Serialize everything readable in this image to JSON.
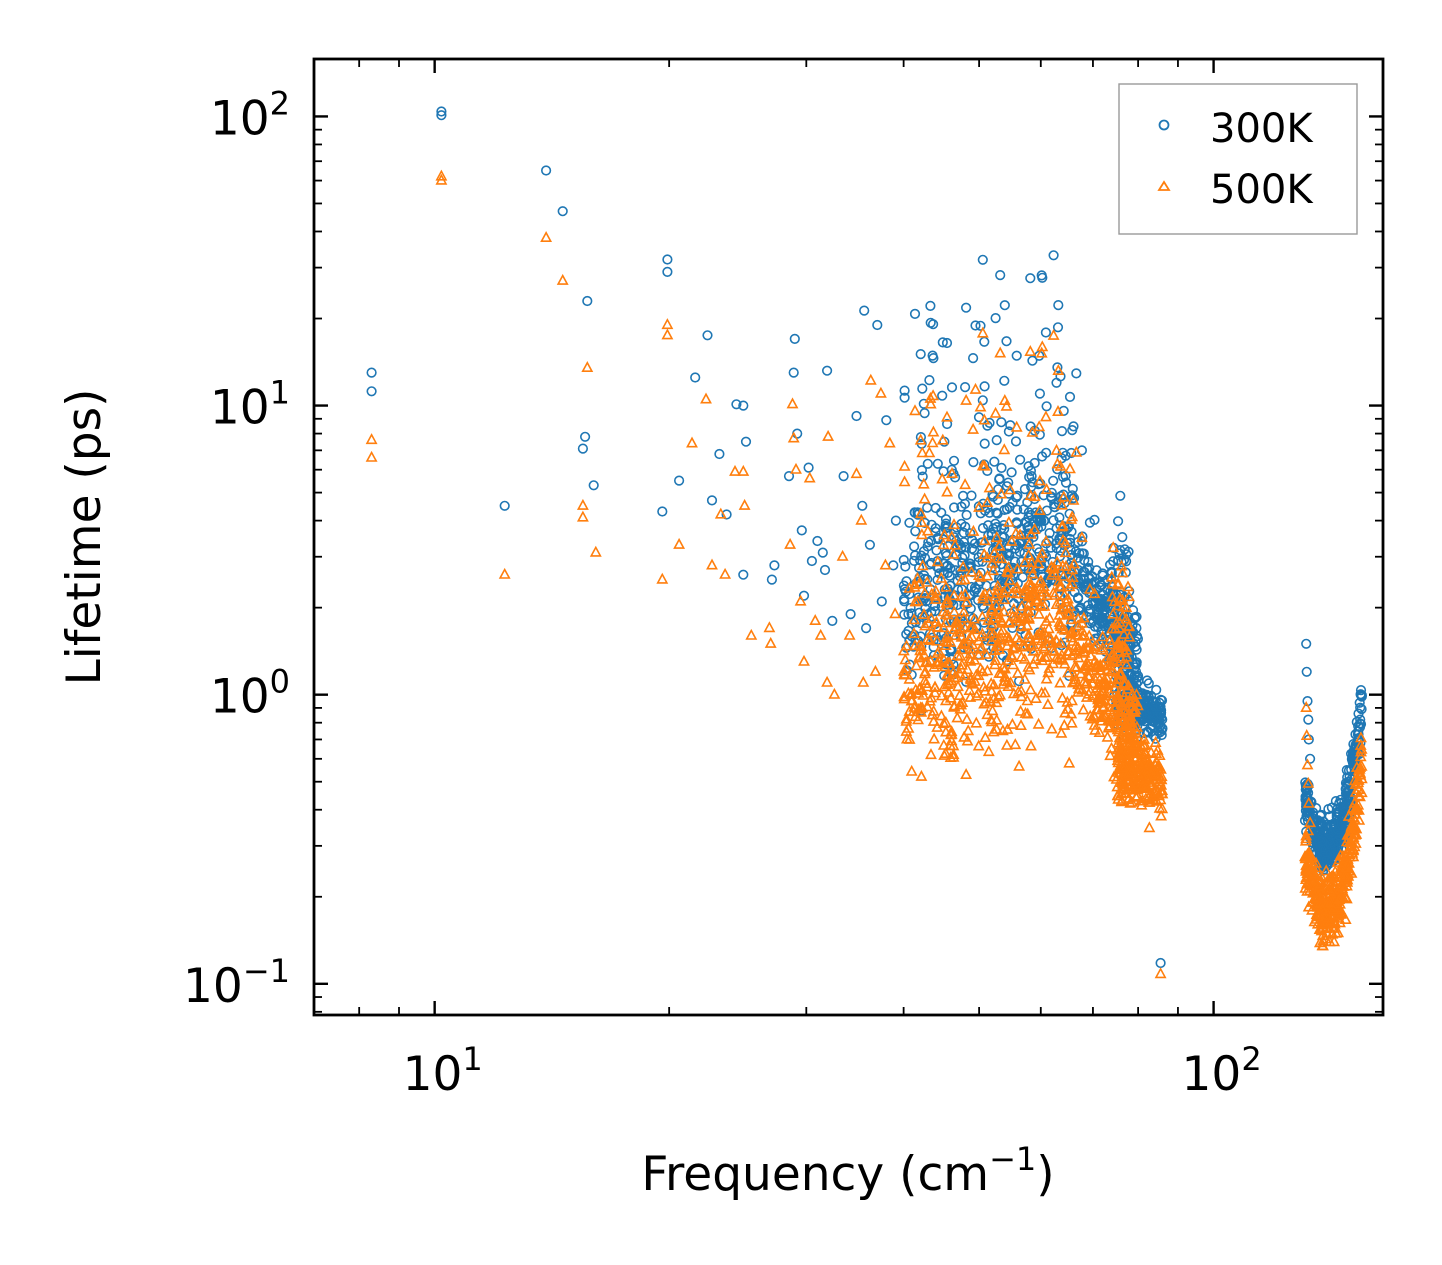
{
  "chart_data": {
    "type": "scatter",
    "title": "",
    "xlabel": "Frequency (cm",
    "xlabel_sup": "−1",
    "xlabel_end": ")",
    "ylabel": "Lifetime (ps)",
    "xscale": "log",
    "yscale": "log",
    "xlim": [
      7.0,
      165.0
    ],
    "ylim": [
      0.078,
      158.0
    ],
    "grid": false,
    "legend_position": "top-right",
    "x_ticks": [
      {
        "value": 10,
        "base": "10",
        "exp": "1"
      },
      {
        "value": 100,
        "base": "10",
        "exp": "2"
      }
    ],
    "y_ticks": [
      {
        "value": 0.1,
        "base": "10",
        "exp": "−1"
      },
      {
        "value": 1,
        "base": "10",
        "exp": "0"
      },
      {
        "value": 10,
        "base": "10",
        "exp": "1"
      },
      {
        "value": 100,
        "base": "10",
        "exp": "2"
      }
    ],
    "series": [
      {
        "name": "300K",
        "marker": "circle",
        "color": "#1f77b4",
        "points": [
          [
            8.3,
            13.0
          ],
          [
            8.3,
            11.2
          ],
          [
            10.2,
            104.0
          ],
          [
            10.2,
            101.0
          ],
          [
            12.3,
            4.5
          ],
          [
            13.9,
            65.0
          ],
          [
            14.6,
            47.0
          ],
          [
            15.6,
            7.8
          ],
          [
            15.5,
            7.1
          ],
          [
            15.7,
            23.0
          ],
          [
            16.0,
            5.3
          ],
          [
            19.6,
            4.3
          ],
          [
            19.9,
            32.0
          ],
          [
            19.9,
            29.0
          ],
          [
            20.6,
            5.5
          ],
          [
            21.6,
            12.5
          ],
          [
            22.4,
            17.5
          ],
          [
            22.7,
            4.7
          ],
          [
            23.2,
            6.8
          ],
          [
            23.7,
            4.2
          ],
          [
            24.4,
            10.1
          ],
          [
            24.9,
            10.0
          ],
          [
            25.1,
            7.5
          ],
          [
            24.9,
            2.6
          ],
          [
            27.1,
            2.5
          ],
          [
            27.3,
            2.8
          ],
          [
            28.5,
            5.7
          ],
          [
            29.0,
            17.0
          ],
          [
            28.9,
            13.0
          ],
          [
            29.2,
            8.0
          ],
          [
            29.6,
            3.7
          ],
          [
            29.8,
            2.2
          ],
          [
            30.2,
            6.1
          ],
          [
            30.5,
            2.9
          ],
          [
            31.0,
            3.4
          ],
          [
            31.5,
            3.1
          ],
          [
            31.9,
            13.2
          ],
          [
            31.7,
            2.7
          ],
          [
            32.4,
            1.8
          ],
          [
            33.5,
            5.7
          ],
          [
            34.2,
            1.9
          ],
          [
            34.8,
            9.2
          ],
          [
            35.4,
            4.5
          ],
          [
            35.8,
            1.7
          ],
          [
            35.6,
            21.3
          ],
          [
            36.2,
            3.3
          ],
          [
            37.0,
            19.0
          ],
          [
            37.5,
            2.1
          ],
          [
            38.0,
            8.9
          ],
          [
            38.8,
            2.8
          ],
          [
            39.1,
            4.0
          ]
        ]
      },
      {
        "name": "500K",
        "marker": "triangle",
        "color": "#ff7f0e",
        "points": [
          [
            8.3,
            7.6
          ],
          [
            8.3,
            6.6
          ],
          [
            10.2,
            62.0
          ],
          [
            10.2,
            60.0
          ],
          [
            12.3,
            2.6
          ],
          [
            13.9,
            38.0
          ],
          [
            14.6,
            27.0
          ],
          [
            15.5,
            4.5
          ],
          [
            15.5,
            4.1
          ],
          [
            15.7,
            13.5
          ],
          [
            16.1,
            3.1
          ],
          [
            19.6,
            2.5
          ],
          [
            19.9,
            19.0
          ],
          [
            19.9,
            17.5
          ],
          [
            20.6,
            3.3
          ],
          [
            21.4,
            7.4
          ],
          [
            22.3,
            10.5
          ],
          [
            22.7,
            2.8
          ],
          [
            23.3,
            4.2
          ],
          [
            23.6,
            2.6
          ],
          [
            24.3,
            5.9
          ],
          [
            24.9,
            5.9
          ],
          [
            25.0,
            4.5
          ],
          [
            25.5,
            1.6
          ],
          [
            26.9,
            1.7
          ],
          [
            27.0,
            1.5
          ],
          [
            28.6,
            3.3
          ],
          [
            28.8,
            10.1
          ],
          [
            28.9,
            7.7
          ],
          [
            29.1,
            6.0
          ],
          [
            29.5,
            2.1
          ],
          [
            29.8,
            1.3
          ],
          [
            30.3,
            5.6
          ],
          [
            30.8,
            1.8
          ],
          [
            31.3,
            1.6
          ],
          [
            32.0,
            7.8
          ],
          [
            31.9,
            1.1
          ],
          [
            32.6,
            1.0
          ],
          [
            33.4,
            3.0
          ],
          [
            34.1,
            1.6
          ],
          [
            34.8,
            5.8
          ],
          [
            35.3,
            4.0
          ],
          [
            35.5,
            1.1
          ],
          [
            36.3,
            12.2
          ],
          [
            36.8,
            1.2
          ],
          [
            37.4,
            11.0
          ],
          [
            37.9,
            2.8
          ],
          [
            38.4,
            7.4
          ],
          [
            39.0,
            1.9
          ]
        ]
      }
    ]
  },
  "legend": {
    "labels": [
      "300K",
      "500K"
    ]
  }
}
